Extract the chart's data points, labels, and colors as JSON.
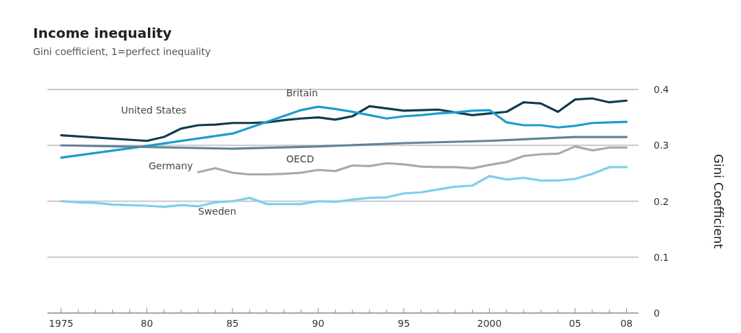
{
  "chart_data": {
    "type": "line",
    "title": "Income inequality",
    "subtitle": "Gini coefficient, 1=perfect inequality",
    "ylabel": "Gini Coefficient",
    "xlim": [
      1974.2,
      2008.7
    ],
    "ylim": [
      0,
      0.4
    ],
    "xticks": [
      {
        "value": 1975,
        "label": "1975"
      },
      {
        "value": 1976,
        "label": null
      },
      {
        "value": 1977,
        "label": null
      },
      {
        "value": 1978,
        "label": null
      },
      {
        "value": 1979,
        "label": null
      },
      {
        "value": 1980,
        "label": "80"
      },
      {
        "value": 1981,
        "label": null
      },
      {
        "value": 1982,
        "label": null
      },
      {
        "value": 1983,
        "label": null
      },
      {
        "value": 1984,
        "label": null
      },
      {
        "value": 1985,
        "label": "85"
      },
      {
        "value": 1986,
        "label": null
      },
      {
        "value": 1987,
        "label": null
      },
      {
        "value": 1988,
        "label": null
      },
      {
        "value": 1989,
        "label": null
      },
      {
        "value": 1990,
        "label": "90"
      },
      {
        "value": 1991,
        "label": null
      },
      {
        "value": 1992,
        "label": null
      },
      {
        "value": 1993,
        "label": null
      },
      {
        "value": 1994,
        "label": null
      },
      {
        "value": 1995,
        "label": "95"
      },
      {
        "value": 1996,
        "label": null
      },
      {
        "value": 1997,
        "label": null
      },
      {
        "value": 1998,
        "label": null
      },
      {
        "value": 1999,
        "label": null
      },
      {
        "value": 2000,
        "label": "2000"
      },
      {
        "value": 2001,
        "label": null
      },
      {
        "value": 2002,
        "label": null
      },
      {
        "value": 2003,
        "label": null
      },
      {
        "value": 2004,
        "label": null
      },
      {
        "value": 2005,
        "label": "05"
      },
      {
        "value": 2006,
        "label": null
      },
      {
        "value": 2007,
        "label": null
      },
      {
        "value": 2008,
        "label": "08"
      }
    ],
    "yticks": [
      0,
      0.1,
      0.2,
      0.3,
      0.4
    ],
    "grid": "y",
    "series": [
      {
        "name": "United States",
        "color": "#0d3b4f",
        "x": [
          1975,
          1980,
          1981,
          1982,
          1983,
          1984,
          1985,
          1986,
          1987,
          1988,
          1989,
          1990,
          1991,
          1992,
          1993,
          1994,
          1995,
          1996,
          1997,
          1998,
          1999,
          2000,
          2001,
          2002,
          2003,
          2004,
          2005,
          2006,
          2007,
          2008
        ],
        "values": [
          0.318,
          0.308,
          0.315,
          0.33,
          0.336,
          0.337,
          0.34,
          0.34,
          0.341,
          0.345,
          0.348,
          0.35,
          0.346,
          0.352,
          0.37,
          0.366,
          0.362,
          0.363,
          0.364,
          0.359,
          0.354,
          0.357,
          0.36,
          0.377,
          0.375,
          0.36,
          0.382,
          0.384,
          0.377,
          0.38
        ]
      },
      {
        "name": "Britain",
        "color": "#1b9bd0",
        "x": [
          1975,
          1980,
          1985,
          1989,
          1990,
          1991,
          1992,
          1993,
          1994,
          1995,
          1996,
          1997,
          1998,
          1999,
          2000,
          2001,
          2002,
          2003,
          2004,
          2005,
          2006,
          2007,
          2008
        ],
        "values": [
          0.278,
          0.299,
          0.321,
          0.363,
          0.369,
          0.365,
          0.36,
          0.354,
          0.348,
          0.352,
          0.354,
          0.357,
          0.359,
          0.362,
          0.363,
          0.341,
          0.336,
          0.336,
          0.332,
          0.335,
          0.34,
          0.341,
          0.342
        ]
      },
      {
        "name": "OECD",
        "color": "#5d8597",
        "x": [
          1975,
          1980,
          1985,
          1990,
          1995,
          2000,
          2005,
          2008
        ],
        "values": [
          0.3,
          0.297,
          0.294,
          0.298,
          0.304,
          0.308,
          0.315,
          0.315
        ]
      },
      {
        "name": "Germany",
        "color": "#a9a9a9",
        "x": [
          1983,
          1984,
          1985,
          1986,
          1987,
          1988,
          1989,
          1990,
          1991,
          1992,
          1993,
          1994,
          1995,
          1996,
          1997,
          1998,
          1999,
          2000,
          2001,
          2002,
          2003,
          2004,
          2005,
          2006,
          2007,
          2008
        ],
        "values": [
          0.252,
          0.259,
          0.251,
          0.248,
          0.248,
          0.249,
          0.251,
          0.256,
          0.254,
          0.264,
          0.263,
          0.268,
          0.266,
          0.262,
          0.261,
          0.261,
          0.259,
          0.265,
          0.27,
          0.281,
          0.284,
          0.285,
          0.298,
          0.291,
          0.296,
          0.296
        ]
      },
      {
        "name": "Sweden",
        "color": "#7dcfec",
        "x": [
          1975,
          1976,
          1977,
          1978,
          1979,
          1980,
          1981,
          1982,
          1983,
          1984,
          1985,
          1986,
          1987,
          1988,
          1989,
          1990,
          1991,
          1992,
          1993,
          1994,
          1995,
          1996,
          1997,
          1998,
          1999,
          2000,
          2001,
          2002,
          2003,
          2004,
          2005,
          2006,
          2007,
          2008
        ],
        "values": [
          0.2,
          0.198,
          0.197,
          0.194,
          0.193,
          0.192,
          0.19,
          0.193,
          0.191,
          0.198,
          0.2,
          0.206,
          0.195,
          0.195,
          0.195,
          0.2,
          0.199,
          0.203,
          0.206,
          0.207,
          0.214,
          0.216,
          0.221,
          0.226,
          0.228,
          0.245,
          0.239,
          0.242,
          0.237,
          0.237,
          0.24,
          0.249,
          0.261,
          0.261
        ]
      }
    ]
  }
}
